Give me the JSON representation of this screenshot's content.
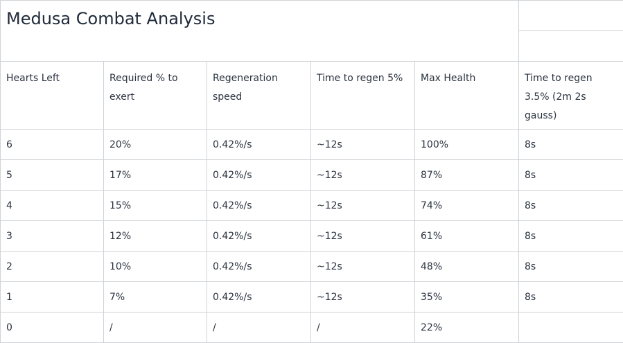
{
  "table": {
    "title": "Medusa Combat Analysis",
    "headers": [
      "Hearts Left",
      "Required % to exert",
      "Regeneration speed",
      "Time to regen 5%",
      "Max Health",
      "Time to regen 3.5% (2m 2s gauss)"
    ],
    "rows": [
      [
        "6",
        "20%",
        "0.42%/s",
        "~12s",
        "100%",
        "8s"
      ],
      [
        "5",
        "17%",
        "0.42%/s",
        "~12s",
        "87%",
        "8s"
      ],
      [
        "4",
        "15%",
        "0.42%/s",
        "~12s",
        "74%",
        "8s"
      ],
      [
        "3",
        "12%",
        "0.42%/s",
        "~12s",
        "61%",
        "8s"
      ],
      [
        "2",
        "10%",
        "0.42%/s",
        "~12s",
        "48%",
        "8s"
      ],
      [
        "1",
        "7%",
        "0.42%/s",
        "~12s",
        "35%",
        "8s"
      ],
      [
        "0",
        "/",
        "/",
        "/",
        "22%",
        ""
      ]
    ]
  }
}
